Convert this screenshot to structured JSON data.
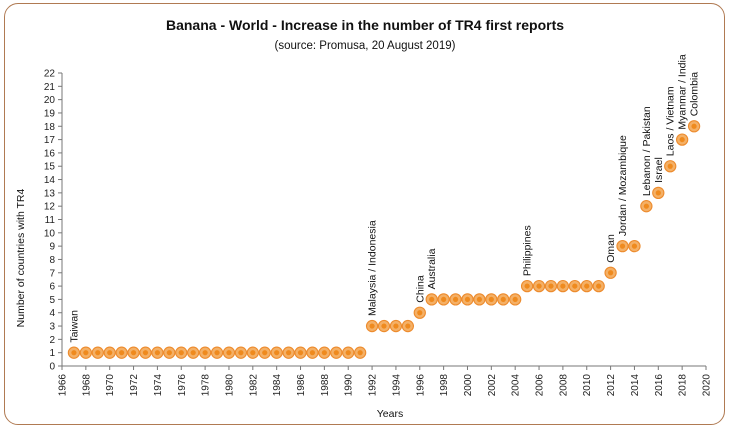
{
  "chart_data": {
    "type": "scatter",
    "title": "Banana - World - Increase in the number of TR4 first reports",
    "subtitle": "(source: Promusa, 20 August 2019)",
    "xlabel": "Years",
    "ylabel": "Number of countries with TR4",
    "xlim": [
      1966,
      2020
    ],
    "ylim": [
      0,
      22
    ],
    "x_ticks": [
      1966,
      1968,
      1970,
      1972,
      1974,
      1976,
      1978,
      1980,
      1982,
      1984,
      1986,
      1988,
      1990,
      1992,
      1994,
      1996,
      1998,
      2000,
      2002,
      2004,
      2006,
      2008,
      2010,
      2012,
      2014,
      2016,
      2018,
      2020
    ],
    "y_ticks": [
      0,
      1,
      2,
      3,
      4,
      5,
      6,
      7,
      8,
      9,
      10,
      11,
      12,
      13,
      14,
      15,
      16,
      17,
      18,
      19,
      20,
      21,
      22
    ],
    "grid": false,
    "x": [
      1967,
      1968,
      1969,
      1970,
      1971,
      1972,
      1973,
      1974,
      1975,
      1976,
      1977,
      1978,
      1979,
      1980,
      1981,
      1982,
      1983,
      1984,
      1985,
      1986,
      1987,
      1988,
      1989,
      1990,
      1991,
      1992,
      1993,
      1994,
      1995,
      1996,
      1997,
      1998,
      1999,
      2000,
      2001,
      2002,
      2003,
      2004,
      2005,
      2006,
      2007,
      2008,
      2009,
      2010,
      2011,
      2012,
      2013,
      2014,
      2015,
      2016,
      2017,
      2018,
      2019
    ],
    "y": [
      1,
      1,
      1,
      1,
      1,
      1,
      1,
      1,
      1,
      1,
      1,
      1,
      1,
      1,
      1,
      1,
      1,
      1,
      1,
      1,
      1,
      1,
      1,
      1,
      1,
      3,
      3,
      3,
      3,
      4,
      5,
      5,
      5,
      5,
      5,
      5,
      5,
      5,
      6,
      6,
      6,
      6,
      6,
      6,
      6,
      7,
      9,
      9,
      12,
      13,
      15,
      17,
      18
    ],
    "annotations": [
      {
        "x": 1967,
        "y": 1,
        "text": "Taiwan"
      },
      {
        "x": 1992,
        "y": 3,
        "text": "Malaysia / Indonesia"
      },
      {
        "x": 1996,
        "y": 4,
        "text": "China"
      },
      {
        "x": 1997,
        "y": 5,
        "text": "Australia"
      },
      {
        "x": 2005,
        "y": 6,
        "text": "Philippines"
      },
      {
        "x": 2012,
        "y": 7,
        "text": "Oman"
      },
      {
        "x": 2013,
        "y": 9,
        "text": "Jordan / Mozambique"
      },
      {
        "x": 2015,
        "y": 12,
        "text": "Lebanon / Pakistan"
      },
      {
        "x": 2016,
        "y": 13,
        "text": "Israel"
      },
      {
        "x": 2017,
        "y": 15,
        "text": "Laos / Vietnam"
      },
      {
        "x": 2018,
        "y": 17,
        "text": "Myanmar / India"
      },
      {
        "x": 2019,
        "y": 18,
        "text": "Colombia"
      }
    ],
    "colors": {
      "marker_fill": "#f4b066",
      "marker_ring": "#ed8b2d",
      "marker_center": "#ef8a1e",
      "frame": "#b07a52",
      "axis": "#777777"
    }
  }
}
